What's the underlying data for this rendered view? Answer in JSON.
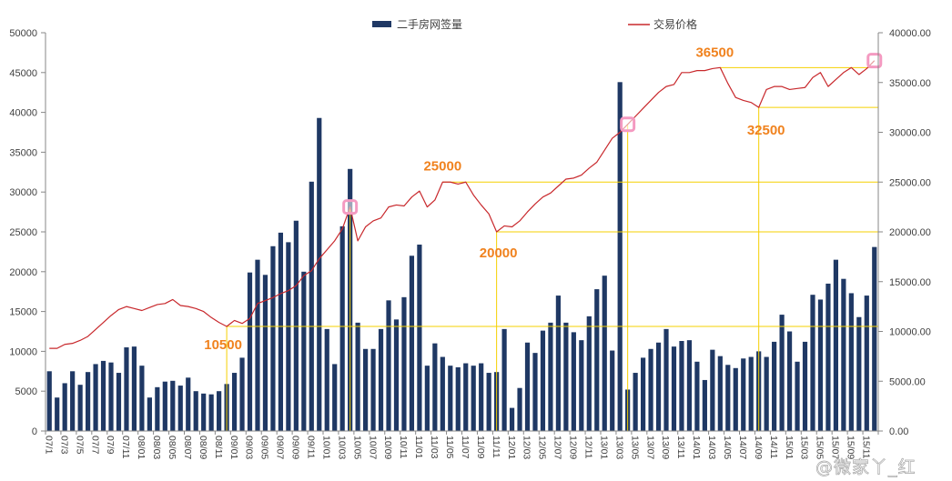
{
  "chart_data": {
    "type": "bar",
    "legend": "top",
    "grid": false,
    "tick_label_interval": 2,
    "x_tick_labels": [
      "07/1",
      "07/3",
      "07/5",
      "07/7",
      "07/9",
      "07/11",
      "08/01",
      "08/03",
      "08/05",
      "08/07",
      "08/09",
      "08/11",
      "09/01",
      "09/03",
      "09/05",
      "09/07",
      "09/09",
      "09/11",
      "10/01",
      "10/03",
      "10/05",
      "10/07",
      "10/09",
      "10/11",
      "11/01",
      "11/03",
      "11/05",
      "11/07",
      "11/09",
      "11/11",
      "12/01",
      "12/03",
      "12/05",
      "12/07",
      "12/09",
      "12/11",
      "13/01",
      "13/03",
      "13/05",
      "13/07",
      "13/09",
      "13/11",
      "14/01",
      "14/03",
      "14/05",
      "14/07",
      "14/09",
      "14/11",
      "15/01",
      "15/03",
      "15/05",
      "15/07",
      "15/09",
      "15/11"
    ],
    "series": [
      {
        "name": "二手房网签量",
        "type": "bar",
        "axis": "left",
        "color": "#1F3864",
        "values": [
          7500,
          4200,
          6000,
          7500,
          5800,
          7400,
          8400,
          8800,
          8600,
          7300,
          10500,
          10600,
          8200,
          4200,
          5500,
          6200,
          6300,
          5700,
          6700,
          5000,
          4700,
          4600,
          5000,
          5900,
          7300,
          9200,
          19900,
          21500,
          19600,
          23200,
          24900,
          23700,
          26400,
          20000,
          31300,
          39300,
          12800,
          8400,
          25700,
          32900,
          13600,
          10300,
          10300,
          12800,
          16400,
          14000,
          16800,
          22000,
          23400,
          8200,
          11000,
          9300,
          8200,
          8000,
          8500,
          8200,
          8500,
          7300,
          7400,
          12800,
          2900,
          5400,
          11100,
          9800,
          12600,
          13600,
          17000,
          13600,
          12400,
          11400,
          14400,
          17800,
          19500,
          10100,
          43800,
          5200,
          7300,
          9200,
          10300,
          11100,
          12800,
          10600,
          11300,
          11400,
          8700,
          6400,
          10200,
          9400,
          8300,
          7900,
          9100,
          9300,
          10000,
          9300,
          11200,
          14600,
          12500,
          8700,
          11200,
          17100,
          16500,
          18500,
          21500,
          19100,
          17300,
          14300,
          17000,
          23100
        ]
      },
      {
        "name": "交易价格",
        "type": "line",
        "axis": "right",
        "color": "#C8282C",
        "values": [
          8300,
          8300,
          8700,
          8800,
          9100,
          9500,
          10200,
          10900,
          11600,
          12200,
          12500,
          12300,
          12100,
          12400,
          12700,
          12800,
          13200,
          12600,
          12500,
          12300,
          12000,
          11400,
          10900,
          10500,
          11100,
          10800,
          11300,
          12800,
          13100,
          13400,
          13800,
          14100,
          14600,
          15600,
          16100,
          17300,
          18200,
          19100,
          20300,
          22500,
          19100,
          20500,
          21100,
          21400,
          22500,
          22700,
          22600,
          23500,
          24100,
          22500,
          23200,
          25000,
          25000,
          24800,
          25000,
          23700,
          22700,
          21800,
          20000,
          20600,
          20500,
          21100,
          22000,
          22800,
          23500,
          23900,
          24600,
          25300,
          25400,
          25700,
          26400,
          27000,
          28200,
          29400,
          30000,
          30800,
          31600,
          32400,
          33200,
          34000,
          34600,
          34800,
          36000,
          36000,
          36200,
          36200,
          36400,
          36500,
          34900,
          33500,
          33200,
          33000,
          32500,
          34300,
          34600,
          34600,
          34300,
          34400,
          34500,
          35500,
          36000,
          34600,
          35300,
          36000,
          36500,
          35800,
          36400,
          37200
        ]
      }
    ],
    "y_left": {
      "min": 0,
      "max": 50000,
      "step": 5000,
      "tick_labels": [
        "0",
        "5000",
        "10000",
        "15000",
        "20000",
        "25000",
        "30000",
        "35000",
        "40000",
        "45000",
        "50000"
      ]
    },
    "y_right": {
      "min": 0,
      "max": 40000,
      "step": 5000,
      "tick_labels": [
        "0.00",
        "5000.00",
        "10000.00",
        "15000.00",
        "20000.00",
        "25000.00",
        "30000.00",
        "35000.00",
        "40000.00"
      ]
    },
    "reference_line_color": "#F5D000",
    "annotation_color": "#F0821E",
    "annotations": [
      {
        "text": "10500",
        "value": 10500,
        "index": 23,
        "horizontal": true,
        "vertical": true
      },
      {
        "text": "25000",
        "value": 25000,
        "index": 51,
        "horizontal": true,
        "vertical": false
      },
      {
        "text": "20000",
        "value": 20000,
        "index": 58,
        "horizontal": true,
        "vertical": true
      },
      {
        "text": "36500",
        "value": 36500,
        "index": 87,
        "horizontal": true,
        "vertical": false
      },
      {
        "text": "32500",
        "value": 32500,
        "index": 92,
        "horizontal": true,
        "vertical": true
      }
    ],
    "marker_lines": [
      {
        "value": 22500,
        "index": 39
      },
      {
        "value": 30800,
        "index": 75
      }
    ],
    "highlight_points": {
      "color": "#F49AC1",
      "indices": [
        39,
        75,
        107
      ]
    }
  },
  "watermark": "@微家丫_红"
}
